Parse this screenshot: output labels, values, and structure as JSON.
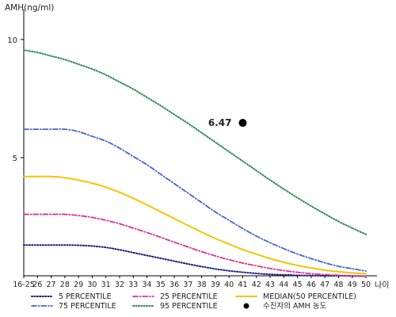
{
  "chart_data": {
    "type": "line",
    "ylabel": "AMH(ng/ml)",
    "xlabel": "나이",
    "x": [
      "16-25",
      "26",
      "27",
      "28",
      "29",
      "30",
      "31",
      "32",
      "33",
      "34",
      "35",
      "36",
      "37",
      "38",
      "39",
      "40",
      "41",
      "42",
      "43",
      "44",
      "45",
      "46",
      "47",
      "48",
      "49",
      "50"
    ],
    "ylim": [
      0,
      11.2
    ],
    "yticks": [
      5,
      10
    ],
    "grid": false,
    "legend_position": "bottom",
    "series": [
      {
        "name": "5 PERCENTILE",
        "color": "#1a1a80",
        "style": "dotted",
        "values": [
          1.3,
          1.3,
          1.3,
          1.3,
          1.29,
          1.26,
          1.2,
          1.1,
          0.98,
          0.86,
          0.74,
          0.62,
          0.5,
          0.39,
          0.29,
          0.21,
          0.15,
          0.1,
          0.06,
          0.04,
          0.02,
          0.01,
          0.0,
          0.0,
          -0.01,
          -0.02
        ]
      },
      {
        "name": "75 PERCENTILE",
        "color": "#4466cc",
        "style": "dashdot",
        "values": [
          6.2,
          6.2,
          6.2,
          6.2,
          6.1,
          5.9,
          5.7,
          5.4,
          5.05,
          4.7,
          4.3,
          3.9,
          3.5,
          3.1,
          2.7,
          2.35,
          2.0,
          1.68,
          1.4,
          1.15,
          0.92,
          0.73,
          0.55,
          0.4,
          0.3,
          0.2
        ]
      },
      {
        "name": "25 PERCENTILE",
        "color": "#e0308e",
        "style": "dashdot",
        "values": [
          2.6,
          2.6,
          2.6,
          2.6,
          2.55,
          2.47,
          2.35,
          2.2,
          2.02,
          1.83,
          1.63,
          1.42,
          1.22,
          1.02,
          0.84,
          0.68,
          0.54,
          0.42,
          0.31,
          0.22,
          0.15,
          0.09,
          0.05,
          0.02,
          0.0,
          -0.01
        ]
      },
      {
        "name": "95 PERCENTILE",
        "color": "#2e8b57",
        "style": "dotted",
        "values": [
          9.55,
          9.45,
          9.3,
          9.15,
          8.95,
          8.75,
          8.5,
          8.2,
          7.9,
          7.55,
          7.2,
          6.82,
          6.45,
          6.05,
          5.65,
          5.25,
          4.85,
          4.45,
          4.05,
          3.67,
          3.3,
          2.95,
          2.62,
          2.3,
          2.02,
          1.75
        ]
      },
      {
        "name": "MEDIAN(50 PERCENTILE)",
        "color": "#f2c500",
        "style": "solid",
        "values": [
          4.2,
          4.2,
          4.2,
          4.15,
          4.05,
          3.92,
          3.75,
          3.53,
          3.28,
          3.0,
          2.71,
          2.42,
          2.13,
          1.85,
          1.58,
          1.34,
          1.11,
          0.91,
          0.73,
          0.57,
          0.44,
          0.33,
          0.24,
          0.17,
          0.12,
          0.09
        ]
      }
    ],
    "patient_point": {
      "name": "수진자의 AMH 농도",
      "x": "41",
      "y": 6.47,
      "label": "6.47",
      "color": "#000000"
    }
  }
}
